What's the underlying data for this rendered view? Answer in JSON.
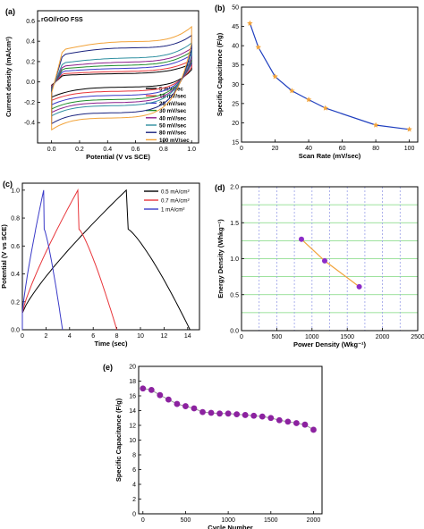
{
  "chart_data": [
    {
      "panel": "(a)",
      "type": "line",
      "annotation": "rGO//rGO FSS",
      "xlabel": "Potential (V vs SCE)",
      "ylabel": "Current density (mA/cm²)",
      "xlim": [
        -0.1,
        1.05
      ],
      "ylim": [
        -0.6,
        0.7
      ],
      "xticks": [
        "0.0",
        "0.2",
        "0.4",
        "0.6",
        "0.8",
        "1.0"
      ],
      "yticks": [
        "-0.4",
        "-0.2",
        "0.0",
        "0.2",
        "0.4",
        "0.6"
      ],
      "legend": "bottom-right",
      "series": [
        {
          "name": "5 mV/sec",
          "color": "#000000",
          "upper_end": 0.2,
          "upper_mid": 0.08,
          "lower_mid": -0.05,
          "lower_start": -0.16
        },
        {
          "name": "10 mV/sec",
          "color": "#e8353a",
          "upper_end": 0.24,
          "upper_mid": 0.1,
          "lower_mid": -0.09,
          "lower_start": -0.2
        },
        {
          "name": "20 mV/sec",
          "color": "#3a3ac8",
          "upper_end": 0.3,
          "upper_mid": 0.13,
          "lower_mid": -0.13,
          "lower_start": -0.25
        },
        {
          "name": "30 mV/sec",
          "color": "#1e8c2a",
          "upper_end": 0.34,
          "upper_mid": 0.16,
          "lower_mid": -0.17,
          "lower_start": -0.3
        },
        {
          "name": "40 mV/sec",
          "color": "#8c1e8c",
          "upper_end": 0.38,
          "upper_mid": 0.19,
          "lower_mid": -0.2,
          "lower_start": -0.34
        },
        {
          "name": "50 mV/sec",
          "color": "#2e8fa0",
          "upper_end": 0.44,
          "upper_mid": 0.23,
          "lower_mid": -0.23,
          "lower_start": -0.38
        },
        {
          "name": "80 mV/sec",
          "color": "#1a237e",
          "upper_end": 0.54,
          "upper_mid": 0.33,
          "lower_mid": -0.3,
          "lower_start": -0.47
        },
        {
          "name": "100 mV/sec",
          "color": "#f2a33a",
          "upper_end": 0.64,
          "upper_mid": 0.39,
          "lower_mid": -0.35,
          "lower_start": -0.54
        }
      ]
    },
    {
      "panel": "(b)",
      "type": "line",
      "xlabel": "Scan Rate (mV/sec)",
      "ylabel": "Specific Capacitance (F/g)",
      "xlim": [
        0,
        105
      ],
      "ylim": [
        15,
        50
      ],
      "xticks": [
        "0",
        "20",
        "40",
        "60",
        "80",
        "100"
      ],
      "yticks": [
        "15",
        "20",
        "25",
        "30",
        "35",
        "40",
        "45",
        "50"
      ],
      "line_color": "#1f3fbf",
      "marker_color": "#f2a33a",
      "x": [
        5,
        10,
        20,
        30,
        40,
        50,
        80,
        100
      ],
      "y": [
        45.8,
        39.6,
        32.0,
        28.3,
        26.0,
        23.8,
        19.4,
        18.3
      ]
    },
    {
      "panel": "(c)",
      "type": "line",
      "xlabel": "Time (sec)",
      "ylabel": "Potential (V vs SCE)",
      "xlim": [
        0,
        15
      ],
      "ylim": [
        0,
        1.05
      ],
      "xticks": [
        "0",
        "2",
        "4",
        "6",
        "8",
        "10",
        "12",
        "14"
      ],
      "yticks": [
        "0.0",
        "0.2",
        "0.4",
        "0.6",
        "0.8",
        "1.0"
      ],
      "legend": "top-right",
      "series": [
        {
          "name": "0.5 mA/cm²",
          "color": "#000000",
          "charge_end": 8.8,
          "discharge_end": 14.2
        },
        {
          "name": "0.7 mA/cm²",
          "color": "#e8353a",
          "charge_end": 4.7,
          "discharge_end": 8.0
        },
        {
          "name": "1 mA/cm²",
          "color": "#3a3ac8",
          "charge_end": 1.8,
          "discharge_end": 3.4
        }
      ]
    },
    {
      "panel": "(d)",
      "type": "scatter",
      "xlabel": "Power Density (Wkg⁻¹)",
      "ylabel": "Energy Density (Whkg⁻¹)",
      "xlim": [
        0,
        2500
      ],
      "ylim": [
        0,
        2
      ],
      "xticks": [
        "0",
        "500",
        "1000",
        "1500",
        "2000",
        "2500"
      ],
      "yticks": [
        "0.0",
        "0.5",
        "1.0",
        "1.5",
        "2.0"
      ],
      "grid": "on",
      "line_color": "#f2a33a",
      "marker_color": "#8c2cc8",
      "x": [
        850,
        1180,
        1670
      ],
      "y": [
        1.27,
        0.97,
        0.61
      ]
    },
    {
      "panel": "(e)",
      "type": "line",
      "xlabel": "Cycle Number",
      "ylabel": "Specific Capacitance (F/g)",
      "xlim": [
        -50,
        2100
      ],
      "ylim": [
        0,
        20
      ],
      "xticks": [
        "0",
        "500",
        "1000",
        "1500",
        "2000"
      ],
      "yticks": [
        "0",
        "2",
        "4",
        "6",
        "8",
        "10",
        "12",
        "14",
        "16",
        "18",
        "20"
      ],
      "line_color": "#9a9a9a",
      "marker_color": "#8c22a0",
      "x": [
        0,
        100,
        200,
        300,
        400,
        500,
        600,
        700,
        800,
        900,
        1000,
        1100,
        1200,
        1300,
        1400,
        1500,
        1600,
        1700,
        1800,
        1900,
        2000
      ],
      "y": [
        17.0,
        16.8,
        16.1,
        15.5,
        14.9,
        14.6,
        14.3,
        13.8,
        13.7,
        13.6,
        13.6,
        13.5,
        13.4,
        13.3,
        13.2,
        13.0,
        12.7,
        12.5,
        12.3,
        12.1,
        11.4
      ]
    }
  ]
}
